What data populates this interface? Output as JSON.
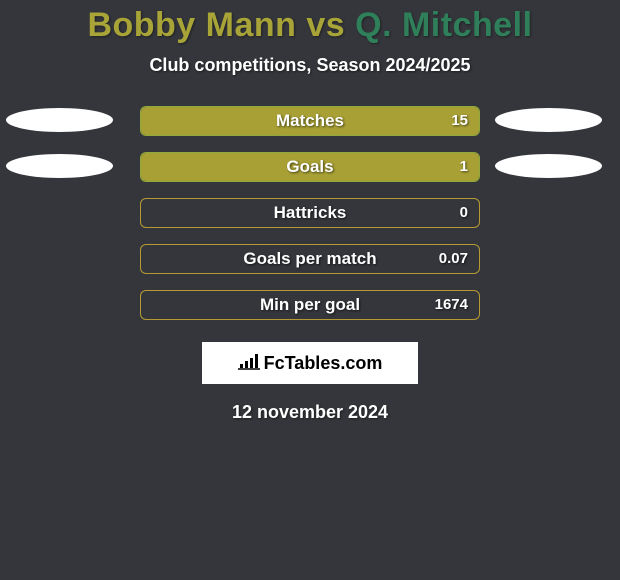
{
  "colors": {
    "background": "#34363b",
    "bar_fill": "#a8a035",
    "bar_border_green": "#8faa3a",
    "bar_border_gold": "#b59a34",
    "white": "#ffffff",
    "title_left": "#a8a438",
    "title_right": "#2f805a"
  },
  "title": {
    "left": "Bobby Mann",
    "vs": " vs ",
    "right": "Q. Mitchell"
  },
  "subtitle": "Club competitions, Season 2024/2025",
  "logo_text": "FcTables.com",
  "date_text": "12 november 2024",
  "stats": [
    {
      "label": "Matches",
      "value": "15",
      "fill_pct": 100,
      "border": "#8faa3a",
      "avatar_left": true,
      "avatar_right": true
    },
    {
      "label": "Goals",
      "value": "1",
      "fill_pct": 100,
      "border": "#8faa3a",
      "avatar_left": true,
      "avatar_right": true
    },
    {
      "label": "Hattricks",
      "value": "0",
      "fill_pct": 0,
      "border": "#b59a34",
      "avatar_left": false,
      "avatar_right": false
    },
    {
      "label": "Goals per match",
      "value": "0.07",
      "fill_pct": 0,
      "border": "#b59a34",
      "avatar_left": false,
      "avatar_right": false
    },
    {
      "label": "Min per goal",
      "value": "1674",
      "fill_pct": 0,
      "border": "#b59a34",
      "avatar_left": false,
      "avatar_right": false
    }
  ]
}
